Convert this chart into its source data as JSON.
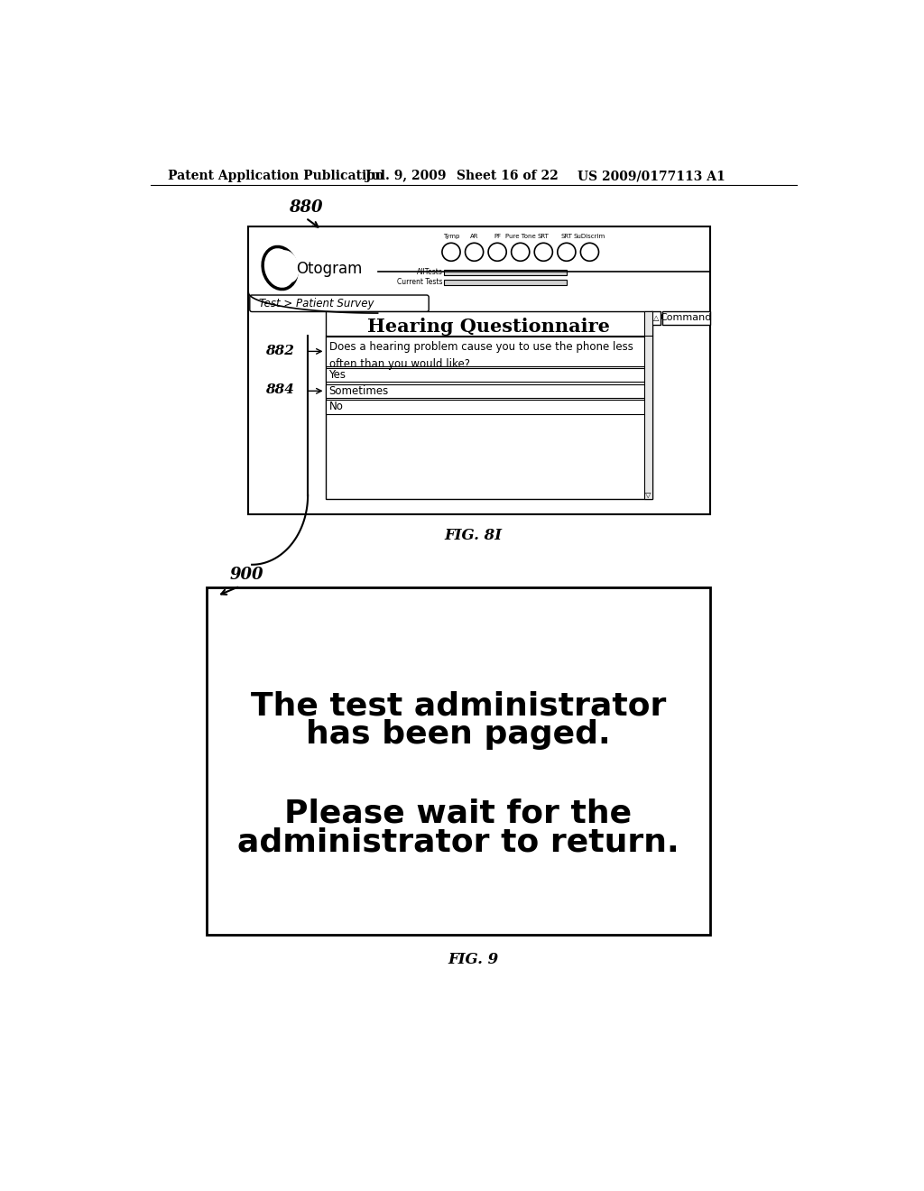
{
  "bg_color": "#ffffff",
  "header_text": "Patent Application Publication",
  "header_date": "Jul. 9, 2009",
  "header_sheet": "Sheet 16 of 22",
  "header_patent": "US 2009/0177113 A1",
  "fig1_label": "880",
  "fig1_caption": "FIG. 8I",
  "fig2_label": "900",
  "fig2_caption": "FIG. 9",
  "otogram_text": "Otogram",
  "nav_tabs": [
    "Tymp",
    "AR",
    "PF",
    "Pure Tone",
    "SRT",
    "SRT",
    "SuDiscrim"
  ],
  "breadcrumb": "Test > Patient Survey",
  "questionnaire_title": "Hearing Questionnaire",
  "question_text": "Does a hearing problem cause you to use the phone less\noften than you would like?",
  "answers": [
    "Yes",
    "Sometimes",
    "No"
  ],
  "label_882": "882",
  "label_884": "884",
  "all_tests_label": "AllTests",
  "current_tests_label": "Current Tests",
  "command_btn": "Command",
  "msg_line1": "The test administrator",
  "msg_line2": "has been paged.",
  "msg_line3": "Please wait for the",
  "msg_line4": "administrator to return."
}
